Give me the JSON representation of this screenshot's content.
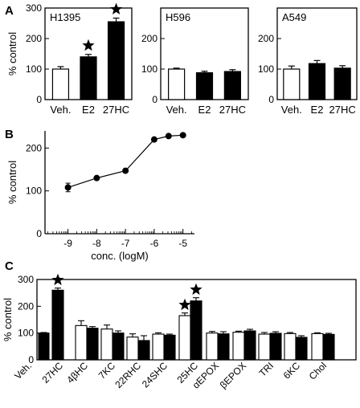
{
  "chart_data": [
    {
      "panel": "A",
      "type": "bar",
      "annotation": "H1395",
      "categories": [
        "Veh.",
        "E2",
        "27HC"
      ],
      "values": [
        100,
        140,
        255
      ],
      "errors": [
        8,
        8,
        12
      ],
      "fills": [
        "white",
        "black",
        "black"
      ],
      "significant": [
        false,
        true,
        true
      ],
      "ylabel": "% control",
      "ylim": [
        0,
        300
      ],
      "yticks": [
        0,
        100,
        200,
        300
      ]
    },
    {
      "panel": "",
      "type": "bar",
      "annotation": "H596",
      "categories": [
        "Veh.",
        "E2",
        "27HC"
      ],
      "values": [
        100,
        88,
        92
      ],
      "errors": [
        3,
        5,
        6
      ],
      "fills": [
        "white",
        "black",
        "black"
      ],
      "significant": [
        false,
        false,
        false
      ],
      "ylim": [
        0,
        300
      ],
      "yticks": [
        0,
        100,
        200
      ]
    },
    {
      "panel": "",
      "type": "bar",
      "annotation": "A549",
      "categories": [
        "Veh.",
        "E2",
        "27HC"
      ],
      "values": [
        100,
        118,
        103
      ],
      "errors": [
        10,
        10,
        8
      ],
      "fills": [
        "white",
        "black",
        "black"
      ],
      "significant": [
        false,
        false,
        false
      ],
      "ylim": [
        0,
        300
      ],
      "yticks": [
        0,
        100,
        200
      ]
    },
    {
      "panel": "B",
      "type": "line",
      "x": [
        -9,
        -8,
        -7,
        -6,
        -5.5,
        -5
      ],
      "y": [
        108,
        130,
        147,
        220,
        228,
        230
      ],
      "errors": [
        10,
        4,
        4,
        4,
        4,
        4
      ],
      "xlabel": "conc. (logM)",
      "ylabel": "% control",
      "xlim": [
        -9.8,
        -4.6
      ],
      "ylim": [
        0,
        240
      ],
      "xticks": [
        -9,
        -8,
        -7,
        -6,
        -5
      ],
      "yticks": [
        0,
        100,
        200
      ]
    },
    {
      "panel": "C",
      "type": "bar",
      "categories": [
        "Veh.",
        "27HC",
        "4βHC",
        "7KC",
        "22RHC",
        "24SHC",
        "25HC",
        "αEPOX",
        "βEPOX",
        "TRI",
        "6KC",
        "Chol"
      ],
      "groups": [
        {
          "label_index": 0,
          "values": [
            100
          ],
          "errors": [
            2
          ],
          "fills": [
            "black"
          ],
          "significant": [
            false
          ]
        },
        {
          "label_index": 1,
          "values": [
            260
          ],
          "errors": [
            8
          ],
          "fills": [
            "black"
          ],
          "significant": [
            true
          ]
        },
        {
          "label_index": 2,
          "values": [
            128,
            118
          ],
          "errors": [
            18,
            6
          ],
          "fills": [
            "white",
            "black"
          ],
          "significant": [
            false,
            false
          ]
        },
        {
          "label_index": 3,
          "values": [
            115,
            100
          ],
          "errors": [
            15,
            8
          ],
          "fills": [
            "white",
            "black"
          ],
          "significant": [
            false,
            false
          ]
        },
        {
          "label_index": 4,
          "values": [
            85,
            72
          ],
          "errors": [
            12,
            18
          ],
          "fills": [
            "white",
            "black"
          ],
          "significant": [
            false,
            false
          ]
        },
        {
          "label_index": 5,
          "values": [
            96,
            92
          ],
          "errors": [
            5,
            4
          ],
          "fills": [
            "white",
            "black"
          ],
          "significant": [
            false,
            false
          ]
        },
        {
          "label_index": 6,
          "values": [
            165,
            220
          ],
          "errors": [
            10,
            12
          ],
          "fills": [
            "white",
            "black"
          ],
          "significant": [
            true,
            true
          ]
        },
        {
          "label_index": 7,
          "values": [
            100,
            97
          ],
          "errors": [
            6,
            8
          ],
          "fills": [
            "white",
            "black"
          ],
          "significant": [
            false,
            false
          ]
        },
        {
          "label_index": 8,
          "values": [
            103,
            108
          ],
          "errors": [
            4,
            6
          ],
          "fills": [
            "white",
            "black"
          ],
          "significant": [
            false,
            false
          ]
        },
        {
          "label_index": 9,
          "values": [
            96,
            99
          ],
          "errors": [
            6,
            6
          ],
          "fills": [
            "white",
            "black"
          ],
          "significant": [
            false,
            false
          ]
        },
        {
          "label_index": 10,
          "values": [
            98,
            84
          ],
          "errors": [
            4,
            6
          ],
          "fills": [
            "white",
            "black"
          ],
          "significant": [
            false,
            false
          ]
        },
        {
          "label_index": 11,
          "values": [
            98,
            95
          ],
          "errors": [
            3,
            4
          ],
          "fills": [
            "white",
            "black"
          ],
          "significant": [
            false,
            false
          ]
        }
      ],
      "ylabel": "% control",
      "ylim": [
        0,
        300
      ],
      "yticks": [
        0,
        100,
        200,
        300
      ]
    }
  ]
}
